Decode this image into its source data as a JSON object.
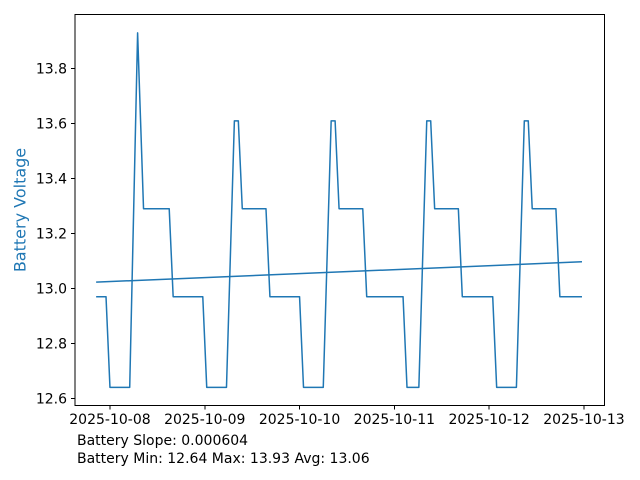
{
  "figure": {
    "background": "#ffffff"
  },
  "chart_data": {
    "type": "line",
    "title": "",
    "xlabel": "",
    "ylabel": "Battery Voltage",
    "axis_label_color": "#1f77b4",
    "line_color": "#1f77b4",
    "trend_color": "#1f77b4",
    "tick_text_color": "#000000",
    "grid": false,
    "legend": "none",
    "x_unit_note": "hours since 2025-10-08 00:00",
    "xlim_hours": [
      -8.85,
      125.2
    ],
    "ylim": [
      12.574,
      13.997
    ],
    "x_ticks": [
      {
        "hour": 0,
        "label": "2025-10-08"
      },
      {
        "hour": 24,
        "label": "2025-10-09"
      },
      {
        "hour": 48,
        "label": "2025-10-10"
      },
      {
        "hour": 72,
        "label": "2025-10-11"
      },
      {
        "hour": 96,
        "label": "2025-10-12"
      },
      {
        "hour": 120,
        "label": "2025-10-13"
      }
    ],
    "y_ticks": [
      {
        "value": 12.6,
        "label": "12.6"
      },
      {
        "value": 12.8,
        "label": "12.8"
      },
      {
        "value": 13.0,
        "label": "13.0"
      },
      {
        "value": 13.2,
        "label": "13.2"
      },
      {
        "value": 13.4,
        "label": "13.4"
      },
      {
        "value": 13.6,
        "label": "13.6"
      },
      {
        "value": 13.8,
        "label": "13.8"
      }
    ],
    "series": [
      {
        "name": "Battery Voltage",
        "points": [
          [
            -3.5,
            12.97
          ],
          [
            -1,
            12.97
          ],
          [
            0,
            12.64
          ],
          [
            5,
            12.64
          ],
          [
            7,
            13.93
          ],
          [
            8.5,
            13.29
          ],
          [
            15,
            13.29
          ],
          [
            16,
            12.97
          ],
          [
            23.5,
            12.97
          ],
          [
            24.5,
            12.64
          ],
          [
            29.5,
            12.64
          ],
          [
            31.5,
            13.61
          ],
          [
            32.5,
            13.61
          ],
          [
            33.5,
            13.29
          ],
          [
            39.5,
            13.29
          ],
          [
            40.5,
            12.97
          ],
          [
            48,
            12.97
          ],
          [
            49,
            12.64
          ],
          [
            54,
            12.64
          ],
          [
            56,
            13.61
          ],
          [
            57,
            13.61
          ],
          [
            58,
            13.29
          ],
          [
            64,
            13.29
          ],
          [
            65,
            12.97
          ],
          [
            74.2,
            12.97
          ],
          [
            75.2,
            12.64
          ],
          [
            78.2,
            12.64
          ],
          [
            80.2,
            13.61
          ],
          [
            81.2,
            13.61
          ],
          [
            82.2,
            13.29
          ],
          [
            88.2,
            13.29
          ],
          [
            89.2,
            12.97
          ],
          [
            96.9,
            12.97
          ],
          [
            97.9,
            12.64
          ],
          [
            102.9,
            12.64
          ],
          [
            104.9,
            13.61
          ],
          [
            105.9,
            13.61
          ],
          [
            106.9,
            13.29
          ],
          [
            112.9,
            13.29
          ],
          [
            113.9,
            12.97
          ],
          [
            119.5,
            12.97
          ]
        ]
      },
      {
        "name": "Trend",
        "points": [
          [
            -3.5,
            13.023
          ],
          [
            119.5,
            13.097
          ]
        ]
      }
    ],
    "annotations": {
      "line1": "Battery Slope: 0.000604",
      "line2": "Battery Min: 12.64 Max: 13.93 Avg: 13.06"
    },
    "stats": {
      "slope": 0.000604,
      "min": 12.64,
      "max": 13.93,
      "avg": 13.06
    }
  }
}
